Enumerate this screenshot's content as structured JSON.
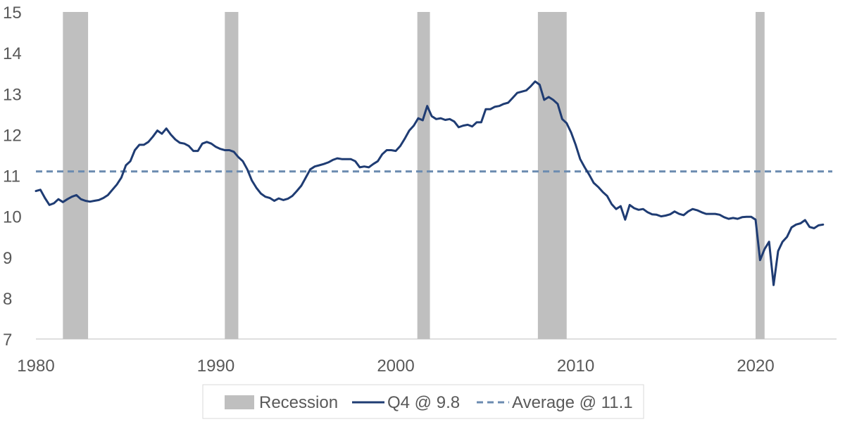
{
  "chart_data": {
    "type": "line",
    "title": "",
    "xlabel": "",
    "ylabel": "",
    "xlim": [
      1980,
      2024.5
    ],
    "ylim": [
      7,
      15
    ],
    "x_ticks": [
      "1980",
      "1990",
      "2000",
      "2010",
      "2020"
    ],
    "x_tick_values": [
      1980,
      1990,
      2000,
      2010,
      2020
    ],
    "y_ticks": [
      "7",
      "8",
      "9",
      "10",
      "11",
      "12",
      "13",
      "14",
      "15"
    ],
    "y_tick_values": [
      7,
      8,
      9,
      10,
      11,
      12,
      13,
      14,
      15
    ],
    "grid": false,
    "legend_position": "bottom",
    "legend": {
      "recession": "Recession",
      "series": "Q4 @ 9.8",
      "average": "Average @ 11.1"
    },
    "colors": {
      "recession": "#bfbfbf",
      "series": "#1f3c73",
      "average": "#6b8bb0",
      "text": "#595959",
      "axis": "#bfbfbf"
    },
    "recessions": [
      {
        "start": 1981.5,
        "end": 1982.9
      },
      {
        "start": 1990.5,
        "end": 1991.25
      },
      {
        "start": 2001.2,
        "end": 2001.9
      },
      {
        "start": 2007.9,
        "end": 2009.5
      },
      {
        "start": 2020.0,
        "end": 2020.5
      }
    ],
    "average": 11.1,
    "series": [
      {
        "name": "Q4 @ 9.8",
        "x": [
          1980.0,
          1980.25,
          1980.5,
          1980.75,
          1981.0,
          1981.25,
          1981.5,
          1981.75,
          1982.0,
          1982.25,
          1982.5,
          1982.75,
          1983.0,
          1983.25,
          1983.5,
          1983.75,
          1984.0,
          1984.25,
          1984.5,
          1984.75,
          1985.0,
          1985.25,
          1985.5,
          1985.75,
          1986.0,
          1986.25,
          1986.5,
          1986.75,
          1987.0,
          1987.25,
          1987.5,
          1987.75,
          1988.0,
          1988.25,
          1988.5,
          1988.75,
          1989.0,
          1989.25,
          1989.5,
          1989.75,
          1990.0,
          1990.25,
          1990.5,
          1990.75,
          1991.0,
          1991.25,
          1991.5,
          1991.75,
          1992.0,
          1992.25,
          1992.5,
          1992.75,
          1993.0,
          1993.25,
          1993.5,
          1993.75,
          1994.0,
          1994.25,
          1994.5,
          1994.75,
          1995.0,
          1995.25,
          1995.5,
          1995.75,
          1996.0,
          1996.25,
          1996.5,
          1996.75,
          1997.0,
          1997.25,
          1997.5,
          1997.75,
          1998.0,
          1998.25,
          1998.5,
          1998.75,
          1999.0,
          1999.25,
          1999.5,
          1999.75,
          2000.0,
          2000.25,
          2000.5,
          2000.75,
          2001.0,
          2001.25,
          2001.5,
          2001.75,
          2002.0,
          2002.25,
          2002.5,
          2002.75,
          2003.0,
          2003.25,
          2003.5,
          2003.75,
          2004.0,
          2004.25,
          2004.5,
          2004.75,
          2005.0,
          2005.25,
          2005.5,
          2005.75,
          2006.0,
          2006.25,
          2006.5,
          2006.75,
          2007.0,
          2007.25,
          2007.5,
          2007.75,
          2008.0,
          2008.25,
          2008.5,
          2008.75,
          2009.0,
          2009.25,
          2009.5,
          2009.75,
          2010.0,
          2010.25,
          2010.5,
          2010.75,
          2011.0,
          2011.25,
          2011.5,
          2011.75,
          2012.0,
          2012.25,
          2012.5,
          2012.75,
          2013.0,
          2013.25,
          2013.5,
          2013.75,
          2014.0,
          2014.25,
          2014.5,
          2014.75,
          2015.0,
          2015.25,
          2015.5,
          2015.75,
          2016.0,
          2016.25,
          2016.5,
          2016.75,
          2017.0,
          2017.25,
          2017.5,
          2017.75,
          2018.0,
          2018.25,
          2018.5,
          2018.75,
          2019.0,
          2019.25,
          2019.5,
          2019.75,
          2020.0,
          2020.25,
          2020.5,
          2020.75,
          2021.0,
          2021.25,
          2021.5,
          2021.75,
          2022.0,
          2022.25,
          2022.5,
          2022.75,
          2023.0,
          2023.25,
          2023.5,
          2023.75
        ],
        "values": [
          10.62,
          10.65,
          10.45,
          10.28,
          10.32,
          10.42,
          10.35,
          10.42,
          10.48,
          10.52,
          10.42,
          10.38,
          10.36,
          10.38,
          10.4,
          10.45,
          10.52,
          10.65,
          10.78,
          10.95,
          11.25,
          11.35,
          11.62,
          11.75,
          11.75,
          11.82,
          11.95,
          12.1,
          12.02,
          12.15,
          12.0,
          11.88,
          11.8,
          11.78,
          11.72,
          11.6,
          11.6,
          11.78,
          11.82,
          11.78,
          11.7,
          11.65,
          11.62,
          11.62,
          11.58,
          11.45,
          11.35,
          11.15,
          10.88,
          10.7,
          10.56,
          10.48,
          10.45,
          10.38,
          10.44,
          10.4,
          10.43,
          10.5,
          10.62,
          10.75,
          10.95,
          11.15,
          11.22,
          11.25,
          11.28,
          11.32,
          11.38,
          11.42,
          11.4,
          11.4,
          11.4,
          11.35,
          11.2,
          11.22,
          11.2,
          11.28,
          11.35,
          11.52,
          11.62,
          11.62,
          11.6,
          11.72,
          11.9,
          12.1,
          12.22,
          12.4,
          12.35,
          12.7,
          12.45,
          12.38,
          12.4,
          12.36,
          12.38,
          12.32,
          12.18,
          12.22,
          12.24,
          12.2,
          12.3,
          12.3,
          12.62,
          12.62,
          12.68,
          12.7,
          12.75,
          12.78,
          12.9,
          13.02,
          13.05,
          13.08,
          13.18,
          13.3,
          13.22,
          12.85,
          12.92,
          12.85,
          12.75,
          12.38,
          12.28,
          12.05,
          11.75,
          11.4,
          11.2,
          11.02,
          10.82,
          10.72,
          10.6,
          10.5,
          10.3,
          10.18,
          10.25,
          9.92,
          10.28,
          10.2,
          10.16,
          10.18,
          10.1,
          10.05,
          10.04,
          10.0,
          10.02,
          10.05,
          10.12,
          10.06,
          10.03,
          10.12,
          10.18,
          10.15,
          10.1,
          10.06,
          10.06,
          10.06,
          10.04,
          9.98,
          9.94,
          9.96,
          9.94,
          9.98,
          9.99,
          9.99,
          9.92,
          8.93,
          9.2,
          9.38,
          8.32,
          9.15,
          9.38,
          9.5,
          9.73,
          9.8,
          9.83,
          9.91,
          9.74,
          9.71,
          9.78,
          9.8
        ]
      }
    ]
  }
}
